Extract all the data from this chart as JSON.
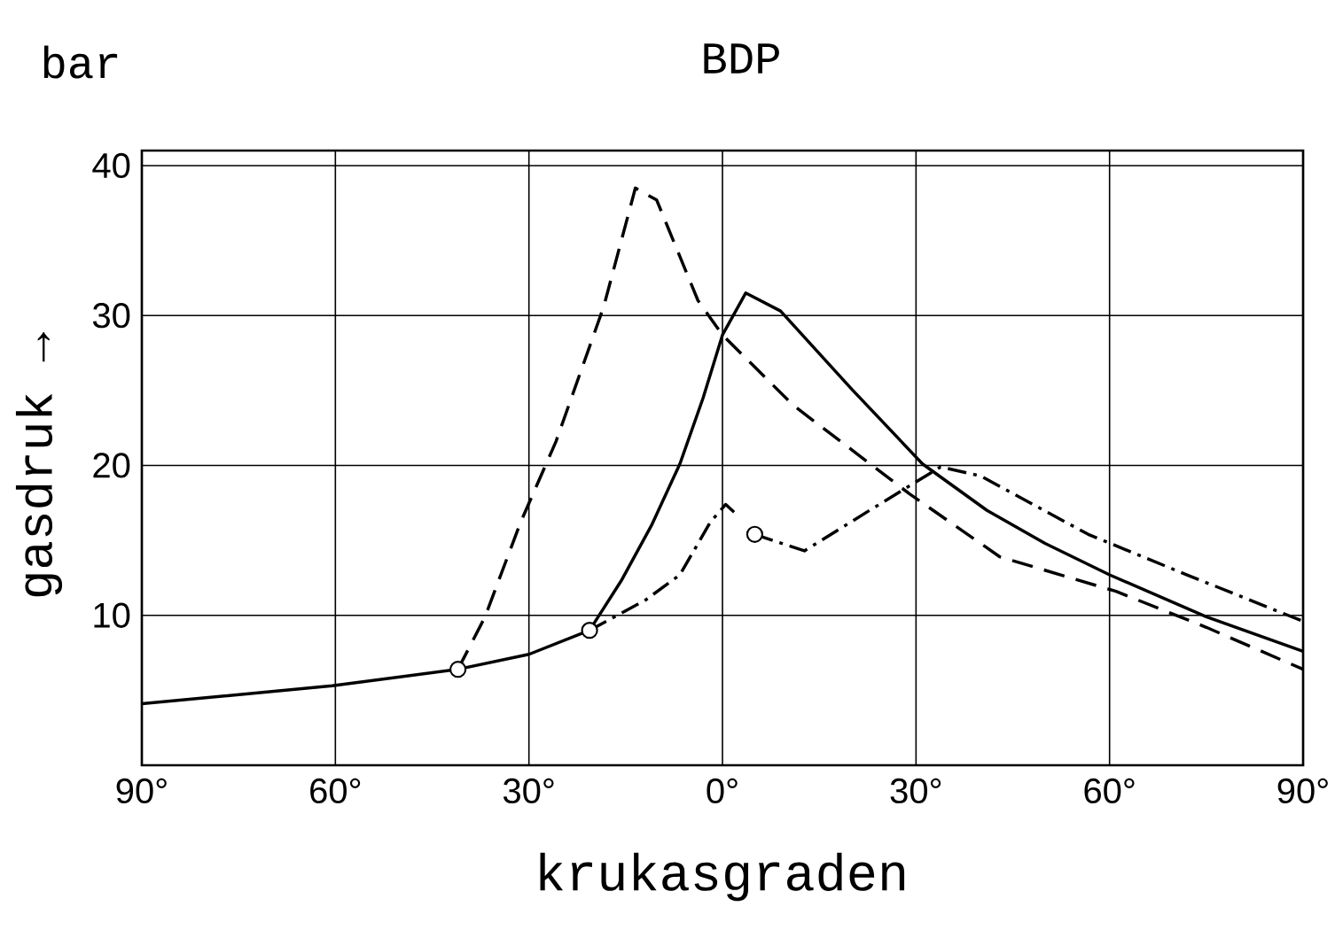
{
  "chart_data": {
    "type": "line",
    "title": "BDP",
    "xlabel": "krukasgraden",
    "ylabel": "gasdruk →",
    "annotations": [
      "bar"
    ],
    "xlim": [
      -90,
      90
    ],
    "ylim": [
      0,
      41
    ],
    "xticks": [
      {
        "value": -90,
        "label": "90°"
      },
      {
        "value": -60,
        "label": "60°"
      },
      {
        "value": -30,
        "label": "30°"
      },
      {
        "value": 0,
        "label": "0°"
      },
      {
        "value": 30,
        "label": "30°"
      },
      {
        "value": 60,
        "label": "60°"
      },
      {
        "value": 90,
        "label": "90°"
      }
    ],
    "yticks": [
      10,
      20,
      30,
      40
    ],
    "grid": true,
    "series": [
      {
        "line_style": "solid",
        "color": "#000000",
        "x": [
          -90,
          -60.5,
          -41,
          -30,
          -20.6,
          -15.7,
          -11,
          -6.6,
          -3,
          0,
          3.6,
          9,
          20,
          31,
          41,
          50,
          60,
          75,
          90
        ],
        "values": [
          4.1,
          5.3,
          6.4,
          7.4,
          9.0,
          12.3,
          16,
          20.1,
          24.5,
          28.7,
          31.5,
          30.3,
          25.1,
          20.1,
          17.0,
          14.8,
          12.7,
          9.9,
          7.6
        ]
      },
      {
        "line_style": "dashed",
        "color": "#000000",
        "x": [
          -41,
          -36.8,
          -31.3,
          -25.8,
          -18.4,
          -13.5,
          -10.2,
          -3.8,
          0,
          11,
          29,
          43,
          61,
          75,
          90
        ],
        "values": [
          6.4,
          9.9,
          16.2,
          21.6,
          30.6,
          38.5,
          37.7,
          31,
          28.7,
          24,
          18.1,
          13.9,
          11.6,
          9.2,
          6.4
        ]
      },
      {
        "line_style": "dashdot",
        "color": "#000000",
        "x": [
          -20.6,
          -12,
          -6.6,
          -1.9,
          0.5,
          2,
          4,
          5,
          12.7,
          22.8,
          33.8,
          40,
          56.7,
          72,
          90
        ],
        "values": [
          9.0,
          11,
          12.7,
          16.2,
          17.4,
          16.8,
          null,
          15.4,
          14.3,
          17,
          19.9,
          19.3,
          15.4,
          12.7,
          9.6
        ]
      },
      {
        "type": "scatter",
        "marker": "circle",
        "color": "#000000",
        "x": [
          -41,
          -20.6,
          5
        ],
        "values": [
          6.4,
          9.0,
          15.4
        ]
      }
    ]
  }
}
